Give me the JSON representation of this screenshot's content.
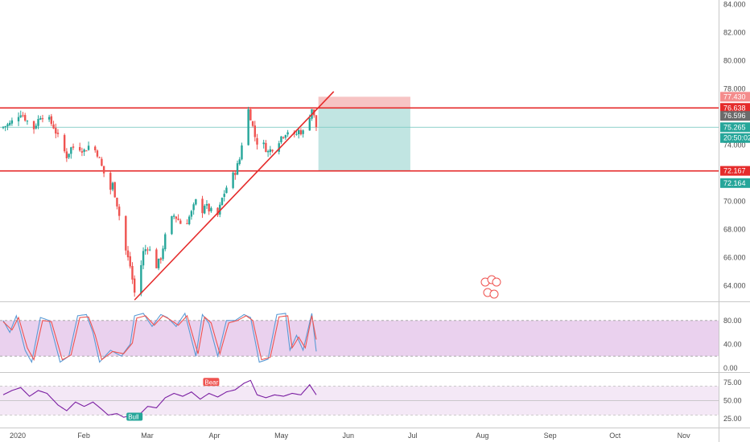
{
  "chart_data": [
    {
      "type": "candlestick",
      "x_ticks": [
        "2020",
        "Feb",
        "Mar",
        "Apr",
        "May",
        "Jun",
        "Jul",
        "Aug",
        "Sep",
        "Oct",
        "Nov"
      ],
      "y_ticks": [
        "84.000",
        "82.000",
        "80.000",
        "78.000",
        "76.000",
        "74.000",
        "72.000",
        "70.000",
        "68.000",
        "66.000",
        "64.000"
      ],
      "ylim": [
        62.9,
        84.3
      ],
      "anchors": [
        {
          "d": 0,
          "p": 75.3
        },
        {
          "d": 3,
          "p": 75.5
        },
        {
          "d": 6,
          "p": 76.0
        },
        {
          "d": 8,
          "p": 76.3
        },
        {
          "d": 11,
          "p": 75.7
        },
        {
          "d": 13,
          "p": 74.9
        },
        {
          "d": 15,
          "p": 75.5
        },
        {
          "d": 17,
          "p": 76.1
        },
        {
          "d": 20,
          "p": 76.0
        },
        {
          "d": 23,
          "p": 75.3
        },
        {
          "d": 26,
          "p": 74.2
        },
        {
          "d": 29,
          "p": 73.2
        },
        {
          "d": 31,
          "p": 73.8
        },
        {
          "d": 34,
          "p": 73.9
        },
        {
          "d": 37,
          "p": 73.6
        },
        {
          "d": 40,
          "p": 74.1
        },
        {
          "d": 43,
          "p": 73.4
        },
        {
          "d": 46,
          "p": 72.0
        },
        {
          "d": 48,
          "p": 70.5
        },
        {
          "d": 50,
          "p": 71.2
        },
        {
          "d": 52,
          "p": 69.8
        },
        {
          "d": 54,
          "p": 68.2
        },
        {
          "d": 56,
          "p": 66.5
        },
        {
          "d": 58,
          "p": 65.4
        },
        {
          "d": 60,
          "p": 63.5
        },
        {
          "d": 62,
          "p": 64.6
        },
        {
          "d": 64,
          "p": 66.4
        },
        {
          "d": 66,
          "p": 66.8
        },
        {
          "d": 68,
          "p": 66.2
        },
        {
          "d": 70,
          "p": 65.4
        },
        {
          "d": 72,
          "p": 66.0
        },
        {
          "d": 74,
          "p": 67.5
        },
        {
          "d": 76,
          "p": 68.5
        },
        {
          "d": 78,
          "p": 69.0
        },
        {
          "d": 80,
          "p": 68.7
        },
        {
          "d": 82,
          "p": 68.2
        },
        {
          "d": 84,
          "p": 68.6
        },
        {
          "d": 86,
          "p": 69.2
        },
        {
          "d": 88,
          "p": 70.0
        },
        {
          "d": 90,
          "p": 68.9
        },
        {
          "d": 92,
          "p": 69.8
        },
        {
          "d": 94,
          "p": 69.4
        },
        {
          "d": 96,
          "p": 69.2
        },
        {
          "d": 98,
          "p": 69.0
        },
        {
          "d": 100,
          "p": 70.2
        },
        {
          "d": 102,
          "p": 71.0
        },
        {
          "d": 104,
          "p": 71.6
        },
        {
          "d": 106,
          "p": 72.1
        },
        {
          "d": 108,
          "p": 73.0
        },
        {
          "d": 110,
          "p": 75.2
        },
        {
          "d": 112,
          "p": 76.5
        },
        {
          "d": 113,
          "p": 76.0
        },
        {
          "d": 115,
          "p": 74.6
        },
        {
          "d": 117,
          "p": 73.8
        },
        {
          "d": 119,
          "p": 74.0
        },
        {
          "d": 121,
          "p": 73.5
        },
        {
          "d": 123,
          "p": 73.8
        },
        {
          "d": 125,
          "p": 74.1
        },
        {
          "d": 127,
          "p": 74.6
        },
        {
          "d": 129,
          "p": 74.9
        },
        {
          "d": 131,
          "p": 75.1
        },
        {
          "d": 133,
          "p": 74.6
        },
        {
          "d": 135,
          "p": 75.0
        },
        {
          "d": 137,
          "p": 74.9
        },
        {
          "d": 139,
          "p": 75.6
        },
        {
          "d": 141,
          "p": 76.6
        },
        {
          "d": 142,
          "p": 76.0
        },
        {
          "d": 143,
          "p": 75.3
        }
      ],
      "horizontal_lines": [
        {
          "price": 76.638,
          "color": "#e52b2b"
        },
        {
          "price": 72.164,
          "color": "#e52b2b"
        },
        {
          "price": 75.265,
          "color": "#80cbc4"
        }
      ],
      "trendline": {
        "from": {
          "d": 60,
          "p": 63.0
        },
        "to": {
          "d": 151,
          "p": 77.8
        },
        "color": "#e52b2b"
      },
      "position": {
        "start_d": 144,
        "end_d": 186,
        "stop": 77.43,
        "entry": 76.638,
        "target": 72.167,
        "stop_color": "#f5b5b5",
        "target_color": "#b2dfdb"
      },
      "price_labels": [
        {
          "text": "77.430",
          "price": 77.43,
          "bg": "#f48c8c"
        },
        {
          "text": "76.638",
          "price": 76.638,
          "bg": "#e52b2b"
        },
        {
          "text": "76.596",
          "price": 76.07,
          "bg": "#6b6b6b"
        },
        {
          "text": "75.265",
          "price": 75.265,
          "bg": "#26a69a"
        },
        {
          "text": "20:50:02",
          "price": 74.5,
          "bg": "#26a69a"
        },
        {
          "text": "72.167",
          "price": 72.167,
          "bg": "#e52b2b"
        },
        {
          "text": "72.164",
          "price": 71.3,
          "bg": "#26a69a"
        }
      ],
      "candle_colors": {
        "up": "#26a69a",
        "down": "#ef5350"
      }
    },
    {
      "type": "line",
      "name": "stochastic",
      "y_ticks": [
        "80.00",
        "40.00",
        "0.00"
      ],
      "band": {
        "upper": 80,
        "lower": 20,
        "fill": "#e1bee7"
      },
      "series": [
        {
          "color": "#5b9bd5",
          "anchors": [
            {
              "d": 0,
              "v": 80
            },
            {
              "d": 3,
              "v": 60
            },
            {
              "d": 6,
              "v": 88
            },
            {
              "d": 10,
              "v": 30
            },
            {
              "d": 13,
              "v": 10
            },
            {
              "d": 17,
              "v": 85
            },
            {
              "d": 21,
              "v": 80
            },
            {
              "d": 26,
              "v": 10
            },
            {
              "d": 30,
              "v": 20
            },
            {
              "d": 34,
              "v": 88
            },
            {
              "d": 38,
              "v": 90
            },
            {
              "d": 41,
              "v": 60
            },
            {
              "d": 44,
              "v": 10
            },
            {
              "d": 49,
              "v": 30
            },
            {
              "d": 54,
              "v": 20
            },
            {
              "d": 58,
              "v": 40
            },
            {
              "d": 60,
              "v": 88
            },
            {
              "d": 64,
              "v": 92
            },
            {
              "d": 68,
              "v": 70
            },
            {
              "d": 72,
              "v": 90
            },
            {
              "d": 75,
              "v": 85
            },
            {
              "d": 79,
              "v": 70
            },
            {
              "d": 83,
              "v": 92
            },
            {
              "d": 88,
              "v": 20
            },
            {
              "d": 91,
              "v": 90
            },
            {
              "d": 94,
              "v": 75
            },
            {
              "d": 98,
              "v": 20
            },
            {
              "d": 102,
              "v": 80
            },
            {
              "d": 106,
              "v": 80
            },
            {
              "d": 110,
              "v": 90
            },
            {
              "d": 113,
              "v": 85
            },
            {
              "d": 117,
              "v": 10
            },
            {
              "d": 121,
              "v": 15
            },
            {
              "d": 125,
              "v": 90
            },
            {
              "d": 129,
              "v": 92
            },
            {
              "d": 131,
              "v": 30
            },
            {
              "d": 134,
              "v": 55
            },
            {
              "d": 137,
              "v": 30
            },
            {
              "d": 141,
              "v": 92
            },
            {
              "d": 143,
              "v": 28
            }
          ]
        },
        {
          "color": "#ef5350",
          "anchors": [
            {
              "d": 0,
              "v": 78
            },
            {
              "d": 4,
              "v": 64
            },
            {
              "d": 7,
              "v": 85
            },
            {
              "d": 11,
              "v": 34
            },
            {
              "d": 14,
              "v": 14
            },
            {
              "d": 18,
              "v": 80
            },
            {
              "d": 22,
              "v": 78
            },
            {
              "d": 27,
              "v": 14
            },
            {
              "d": 31,
              "v": 22
            },
            {
              "d": 35,
              "v": 85
            },
            {
              "d": 39,
              "v": 86
            },
            {
              "d": 42,
              "v": 56
            },
            {
              "d": 45,
              "v": 14
            },
            {
              "d": 50,
              "v": 28
            },
            {
              "d": 55,
              "v": 24
            },
            {
              "d": 59,
              "v": 42
            },
            {
              "d": 61,
              "v": 84
            },
            {
              "d": 65,
              "v": 88
            },
            {
              "d": 69,
              "v": 72
            },
            {
              "d": 73,
              "v": 88
            },
            {
              "d": 76,
              "v": 82
            },
            {
              "d": 80,
              "v": 72
            },
            {
              "d": 84,
              "v": 88
            },
            {
              "d": 89,
              "v": 24
            },
            {
              "d": 92,
              "v": 86
            },
            {
              "d": 95,
              "v": 76
            },
            {
              "d": 99,
              "v": 24
            },
            {
              "d": 103,
              "v": 76
            },
            {
              "d": 107,
              "v": 80
            },
            {
              "d": 111,
              "v": 88
            },
            {
              "d": 114,
              "v": 80
            },
            {
              "d": 118,
              "v": 14
            },
            {
              "d": 122,
              "v": 18
            },
            {
              "d": 126,
              "v": 86
            },
            {
              "d": 130,
              "v": 88
            },
            {
              "d": 132,
              "v": 34
            },
            {
              "d": 135,
              "v": 52
            },
            {
              "d": 138,
              "v": 34
            },
            {
              "d": 141,
              "v": 88
            },
            {
              "d": 143,
              "v": 48
            }
          ]
        }
      ]
    },
    {
      "type": "line",
      "name": "rsi",
      "y_ticks": [
        "75.00",
        "50.00",
        "25.00"
      ],
      "band": {
        "upper": 70,
        "lower": 30,
        "fill": "#f3e5f5"
      },
      "series": [
        {
          "color": "#7b1fa2",
          "anchors": [
            {
              "d": 0,
              "v": 58
            },
            {
              "d": 4,
              "v": 64
            },
            {
              "d": 8,
              "v": 68
            },
            {
              "d": 12,
              "v": 56
            },
            {
              "d": 16,
              "v": 64
            },
            {
              "d": 20,
              "v": 60
            },
            {
              "d": 25,
              "v": 44
            },
            {
              "d": 29,
              "v": 36
            },
            {
              "d": 33,
              "v": 48
            },
            {
              "d": 37,
              "v": 42
            },
            {
              "d": 41,
              "v": 48
            },
            {
              "d": 45,
              "v": 38
            },
            {
              "d": 48,
              "v": 30
            },
            {
              "d": 52,
              "v": 32
            },
            {
              "d": 55,
              "v": 27
            },
            {
              "d": 58,
              "v": 29
            },
            {
              "d": 60,
              "v": 24
            },
            {
              "d": 62,
              "v": 30
            },
            {
              "d": 66,
              "v": 42
            },
            {
              "d": 70,
              "v": 40
            },
            {
              "d": 74,
              "v": 54
            },
            {
              "d": 78,
              "v": 60
            },
            {
              "d": 82,
              "v": 56
            },
            {
              "d": 86,
              "v": 62
            },
            {
              "d": 90,
              "v": 52
            },
            {
              "d": 94,
              "v": 60
            },
            {
              "d": 98,
              "v": 55
            },
            {
              "d": 102,
              "v": 62
            },
            {
              "d": 106,
              "v": 65
            },
            {
              "d": 110,
              "v": 74
            },
            {
              "d": 113,
              "v": 78
            },
            {
              "d": 116,
              "v": 58
            },
            {
              "d": 120,
              "v": 54
            },
            {
              "d": 124,
              "v": 58
            },
            {
              "d": 128,
              "v": 56
            },
            {
              "d": 132,
              "v": 60
            },
            {
              "d": 136,
              "v": 58
            },
            {
              "d": 140,
              "v": 72
            },
            {
              "d": 143,
              "v": 58
            }
          ]
        }
      ],
      "labels": [
        {
          "text": "Bear",
          "d": 95,
          "v": 68,
          "bg": "#ef5350"
        },
        {
          "text": "Bull",
          "d": 60,
          "v": 20,
          "bg": "#26a69a"
        }
      ]
    }
  ]
}
